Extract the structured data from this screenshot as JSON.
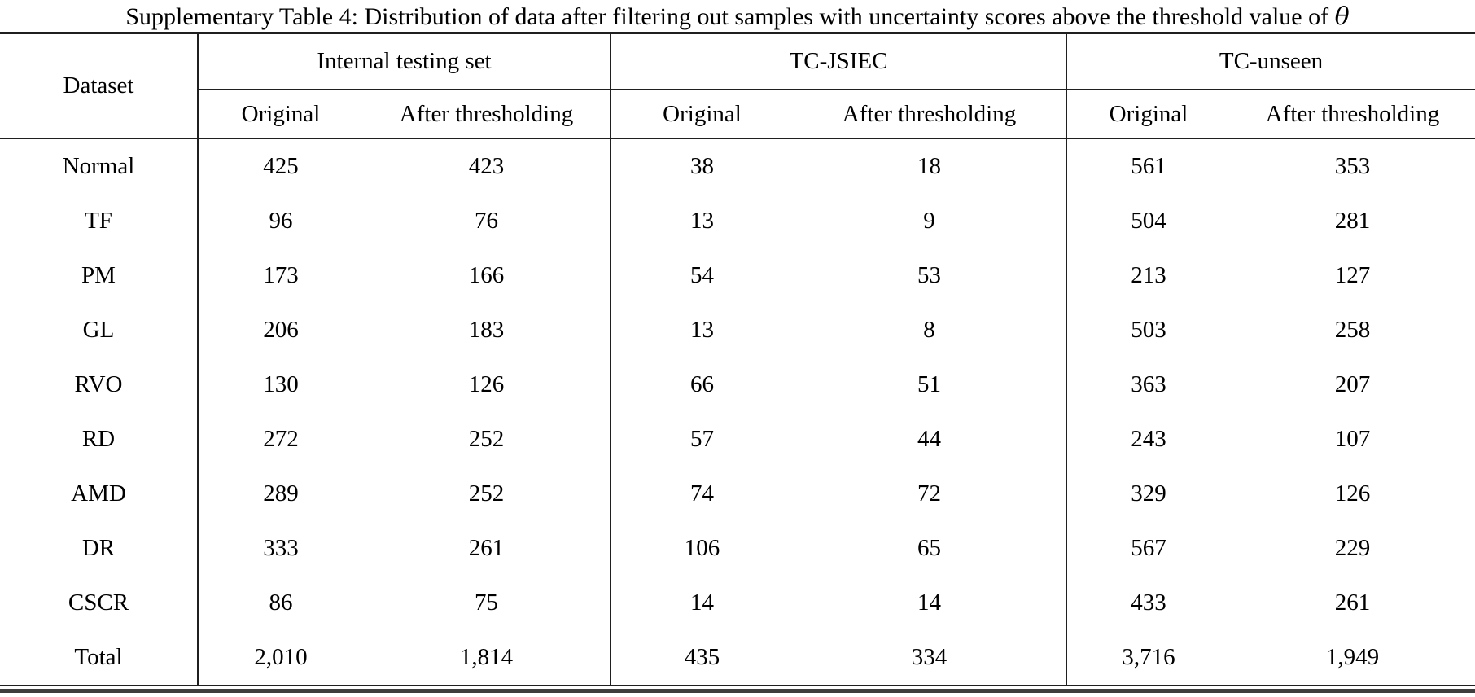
{
  "title": {
    "text": "Supplementary Table 4: Distribution of data after filtering out samples with uncertainty scores above the threshold value of",
    "symbol": "θ"
  },
  "table": {
    "dataset_header": "Dataset",
    "groups": [
      {
        "label": "Internal testing set",
        "columns": [
          "Original",
          "After thresholding"
        ]
      },
      {
        "label": "TC-JSIEC",
        "columns": [
          "Original",
          "After thresholding"
        ]
      },
      {
        "label": "TC-unseen",
        "columns": [
          "Original",
          "After thresholding"
        ]
      }
    ],
    "rows": [
      {
        "dataset": "Normal",
        "values": [
          "425",
          "423",
          "38",
          "18",
          "561",
          "353"
        ]
      },
      {
        "dataset": "TF",
        "values": [
          "96",
          "76",
          "13",
          "9",
          "504",
          "281"
        ]
      },
      {
        "dataset": "PM",
        "values": [
          "173",
          "166",
          "54",
          "53",
          "213",
          "127"
        ]
      },
      {
        "dataset": "GL",
        "values": [
          "206",
          "183",
          "13",
          "8",
          "503",
          "258"
        ]
      },
      {
        "dataset": "RVO",
        "values": [
          "130",
          "126",
          "66",
          "51",
          "363",
          "207"
        ]
      },
      {
        "dataset": "RD",
        "values": [
          "272",
          "252",
          "57",
          "44",
          "243",
          "107"
        ]
      },
      {
        "dataset": "AMD",
        "values": [
          "289",
          "252",
          "74",
          "72",
          "329",
          "126"
        ]
      },
      {
        "dataset": "DR",
        "values": [
          "333",
          "261",
          "106",
          "65",
          "567",
          "229"
        ]
      },
      {
        "dataset": "CSCR",
        "values": [
          "86",
          "75",
          "14",
          "14",
          "433",
          "261"
        ]
      },
      {
        "dataset": "Total",
        "values": [
          "2,010",
          "1,814",
          "435",
          "334",
          "3,716",
          "1,949"
        ]
      }
    ]
  },
  "colors": {
    "rule": "#1f1f1f",
    "bottom_bar": "#3d3d3d",
    "background": "#ffffff",
    "text": "#000000"
  }
}
